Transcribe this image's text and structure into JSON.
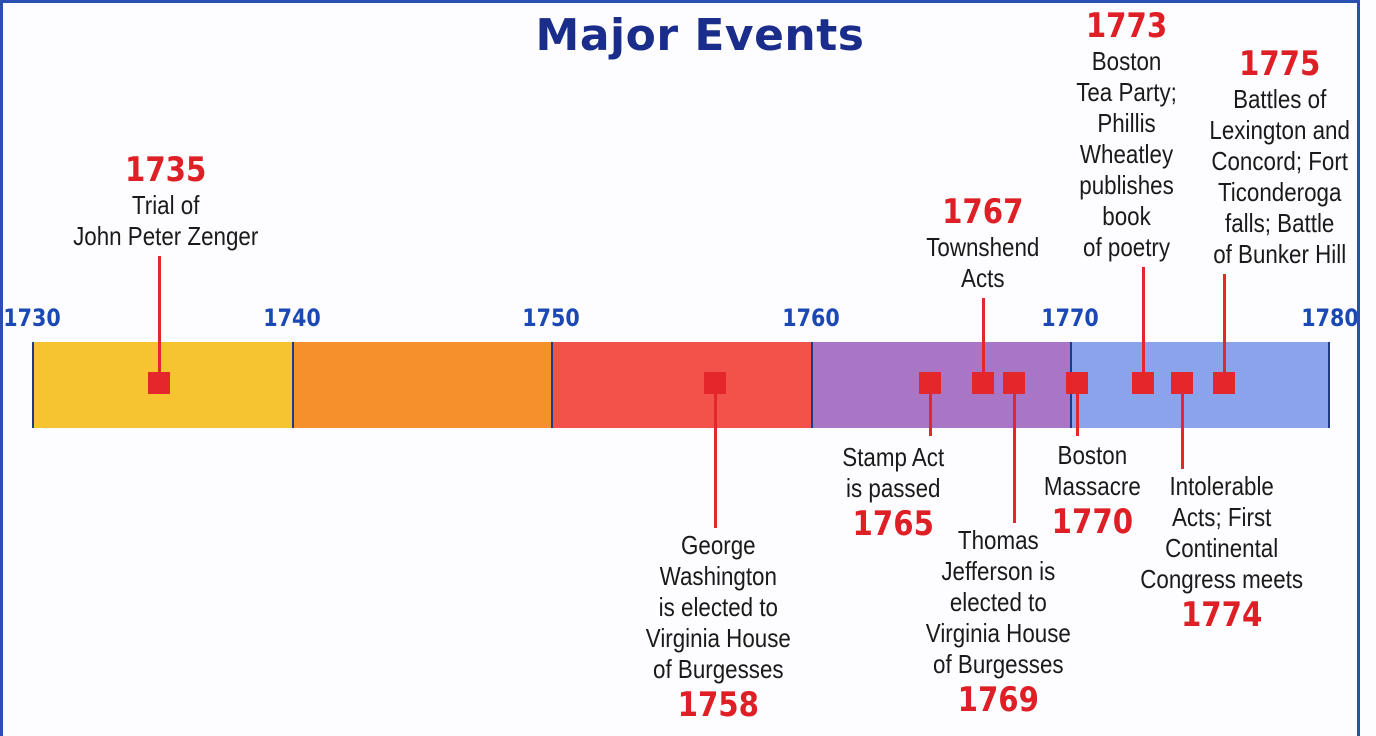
{
  "title": "Major Events",
  "decades": [
    "1730",
    "1740",
    "1750",
    "1760",
    "1770",
    "1780"
  ],
  "band_colors": [
    "#f6c431",
    "#f5902d",
    "#f2524a",
    "#a876c4",
    "#8aa3ea"
  ],
  "marker_color": "#e3272b",
  "events": [
    {
      "id": "zenger",
      "year": "1735",
      "lines": [
        "Trial of",
        "John Peter Zenger"
      ]
    },
    {
      "id": "washington",
      "year": "1758",
      "lines": [
        "George",
        "Washington",
        "is elected to",
        "Virginia House",
        "of Burgesses"
      ]
    },
    {
      "id": "stamp-act",
      "year": "1765",
      "lines": [
        "Stamp Act",
        "is passed"
      ]
    },
    {
      "id": "townshend",
      "year": "1767",
      "lines": [
        "Townshend",
        "Acts"
      ]
    },
    {
      "id": "jefferson",
      "year": "1769",
      "lines": [
        "Thomas",
        "Jefferson is",
        "elected to",
        "Virginia House",
        "of Burgesses"
      ]
    },
    {
      "id": "massacre",
      "year": "1770",
      "lines": [
        "Boston",
        "Massacre"
      ]
    },
    {
      "id": "tea-party",
      "year": "1773",
      "lines": [
        "Boston",
        "Tea Party;",
        "Phillis",
        "Wheatley",
        "publishes",
        "book",
        "of poetry"
      ]
    },
    {
      "id": "intolerable",
      "year": "1774",
      "lines": [
        "Intolerable",
        "Acts; First",
        "Continental",
        "Congress meets"
      ]
    },
    {
      "id": "lexington",
      "year": "1775",
      "lines": [
        "Battles of",
        "Lexington and",
        "Concord; Fort",
        "Ticonderoga",
        "falls; Battle",
        "of Bunker Hill"
      ]
    }
  ]
}
